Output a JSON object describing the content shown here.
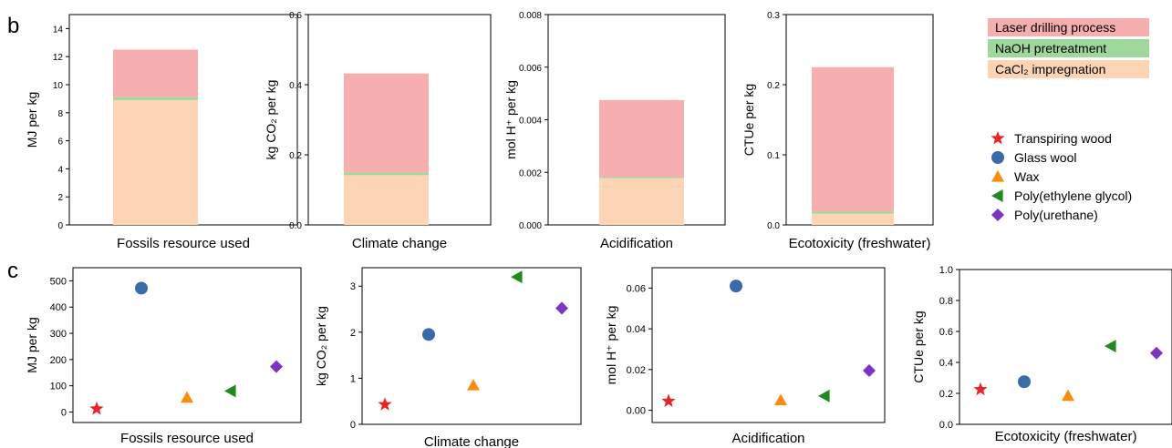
{
  "panel_labels": [
    "b",
    "c"
  ],
  "bar_legend": [
    {
      "label": "Laser drilling process",
      "color": "#f7aeae"
    },
    {
      "label": "NaOH pretreatment",
      "color": "#9ed89b"
    },
    {
      "label": "CaCl₂ impregnation",
      "color": "#fdd5b4"
    }
  ],
  "marker_legend": [
    {
      "label": "Transpiring wood",
      "marker": "star-icon",
      "color": "#e3262a"
    },
    {
      "label": "Glass wool",
      "marker": "circle-icon",
      "color": "#3a6ba8"
    },
    {
      "label": "Wax",
      "marker": "triangle-up-icon",
      "color": "#f98d0d"
    },
    {
      "label": "Poly(ethylene glycol)",
      "marker": "triangle-left-icon",
      "color": "#1f8a1f"
    },
    {
      "label": "Poly(urethane)",
      "marker": "diamond-icon",
      "color": "#7b34c3"
    }
  ],
  "chart_data": [
    {
      "type": "bar",
      "stacked": true,
      "panel": "b",
      "xlabel": "Fossils resource used",
      "ylabel": "MJ per kg",
      "ylim": [
        0,
        15
      ],
      "yticks": [
        "0",
        "2",
        "4",
        "6",
        "8",
        "10",
        "12",
        "14"
      ],
      "series": [
        {
          "name": "CaCl₂ impregnation",
          "values": [
            8.9
          ]
        },
        {
          "name": "NaOH pretreatment",
          "values": [
            0.2
          ]
        },
        {
          "name": "Laser drilling process",
          "values": [
            3.4
          ]
        }
      ]
    },
    {
      "type": "bar",
      "stacked": true,
      "panel": "b",
      "xlabel": "Climate change",
      "ylabel": "kg CO₂ per kg",
      "ylim": [
        0,
        0.6
      ],
      "yticks": [
        "0.0",
        "0.2",
        "0.4",
        "0.6"
      ],
      "series": [
        {
          "name": "CaCl₂ impregnation",
          "values": [
            0.142
          ]
        },
        {
          "name": "NaOH pretreatment",
          "values": [
            0.008
          ]
        },
        {
          "name": "Laser drilling process",
          "values": [
            0.282
          ]
        }
      ]
    },
    {
      "type": "bar",
      "stacked": true,
      "panel": "b",
      "xlabel": "Acidification",
      "ylabel": "mol H⁺ per kg",
      "ylim": [
        0,
        0.008
      ],
      "yticks": [
        "0.000",
        "0.002",
        "0.004",
        "0.006",
        "0.008"
      ],
      "series": [
        {
          "name": "CaCl₂ impregnation",
          "values": [
            0.00178
          ]
        },
        {
          "name": "NaOH pretreatment",
          "values": [
            4e-05
          ]
        },
        {
          "name": "Laser drilling process",
          "values": [
            0.00293
          ]
        }
      ]
    },
    {
      "type": "bar",
      "stacked": true,
      "panel": "b",
      "xlabel": "Ecotoxicity (freshwater)",
      "ylabel": "CTUe per kg",
      "ylim": [
        0,
        0.3
      ],
      "yticks": [
        "0.0",
        "0.1",
        "0.2",
        "0.3"
      ],
      "series": [
        {
          "name": "CaCl₂ impregnation",
          "values": [
            0.016
          ]
        },
        {
          "name": "NaOH pretreatment",
          "values": [
            0.003
          ]
        },
        {
          "name": "Laser drilling process",
          "values": [
            0.206
          ]
        }
      ]
    },
    {
      "type": "scatter",
      "panel": "c",
      "xlabel": "Fossils resource used",
      "ylabel": "MJ per kg",
      "ylim": [
        -40,
        550
      ],
      "yticks": [
        "0",
        "100",
        "200",
        "300",
        "400",
        "500"
      ],
      "categories": [
        "Transpiring wood",
        "Glass wool",
        "Wax",
        "Poly(ethylene glycol)",
        "Poly(urethane)"
      ],
      "values": [
        12,
        472,
        55,
        80,
        173
      ]
    },
    {
      "type": "scatter",
      "panel": "c",
      "xlabel": "Climate change",
      "ylabel": "kg CO₂ per kg",
      "ylim": [
        0,
        3.4
      ],
      "yticks": [
        "0",
        "1",
        "2",
        "3"
      ],
      "categories": [
        "Transpiring wood",
        "Glass wool",
        "Wax",
        "Poly(ethylene glycol)",
        "Poly(urethane)"
      ],
      "values": [
        0.43,
        1.95,
        0.85,
        3.2,
        2.52
      ]
    },
    {
      "type": "scatter",
      "panel": "c",
      "xlabel": "Acidification",
      "ylabel": "mol H⁺ per kg",
      "ylim": [
        -0.006,
        0.07
      ],
      "yticks": [
        "0.00",
        "0.02",
        "0.04",
        "0.06"
      ],
      "categories": [
        "Transpiring wood",
        "Glass wool",
        "Wax",
        "Poly(ethylene glycol)",
        "Poly(urethane)"
      ],
      "values": [
        0.0045,
        0.061,
        0.005,
        0.007,
        0.0195
      ]
    },
    {
      "type": "scatter",
      "panel": "c",
      "xlabel": "Ecotoxicity (freshwater)",
      "ylabel": "CTUe per kg",
      "ylim": [
        0,
        1.0
      ],
      "yticks": [
        "0.0",
        "0.2",
        "0.4",
        "0.6",
        "0.8",
        "1.0"
      ],
      "categories": [
        "Transpiring wood",
        "Glass wool",
        "Wax",
        "Poly(ethylene glycol)",
        "Poly(urethane)"
      ],
      "values": [
        0.225,
        0.275,
        0.185,
        0.505,
        0.46
      ]
    }
  ]
}
